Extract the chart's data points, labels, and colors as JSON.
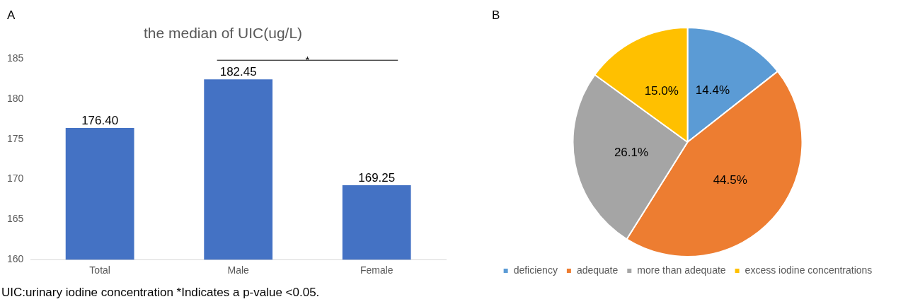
{
  "chart_data": [
    {
      "type": "bar",
      "title": "the median of UIC(ug/L)",
      "categories": [
        "Total",
        "Male",
        "Female"
      ],
      "values": [
        176.4,
        182.45,
        169.25
      ],
      "color": "#4472c4",
      "value_labels": [
        "176.40",
        "182.45",
        "169.25"
      ],
      "ylim": [
        160,
        185
      ],
      "yticks": [
        160,
        165,
        170,
        175,
        180,
        185
      ],
      "grid": false,
      "legend": false,
      "annotations": [
        "A",
        "*",
        "UIC:urinary iodine concentration  *Indicates a p-value <0.05."
      ]
    },
    {
      "type": "pie",
      "categories": [
        "deficiency",
        "adequate",
        "more than adequate",
        "excess iodine concentrations"
      ],
      "values": [
        14.4,
        44.5,
        26.1,
        15.0
      ],
      "colors": [
        "#5b9bd5",
        "#ed7d31",
        "#a5a5a5",
        "#ffc000"
      ],
      "value_labels": [
        "14.4%",
        "44.5%",
        "26.1%",
        "15.0%"
      ],
      "legend": "bottom",
      "annotations": [
        "B"
      ]
    }
  ]
}
